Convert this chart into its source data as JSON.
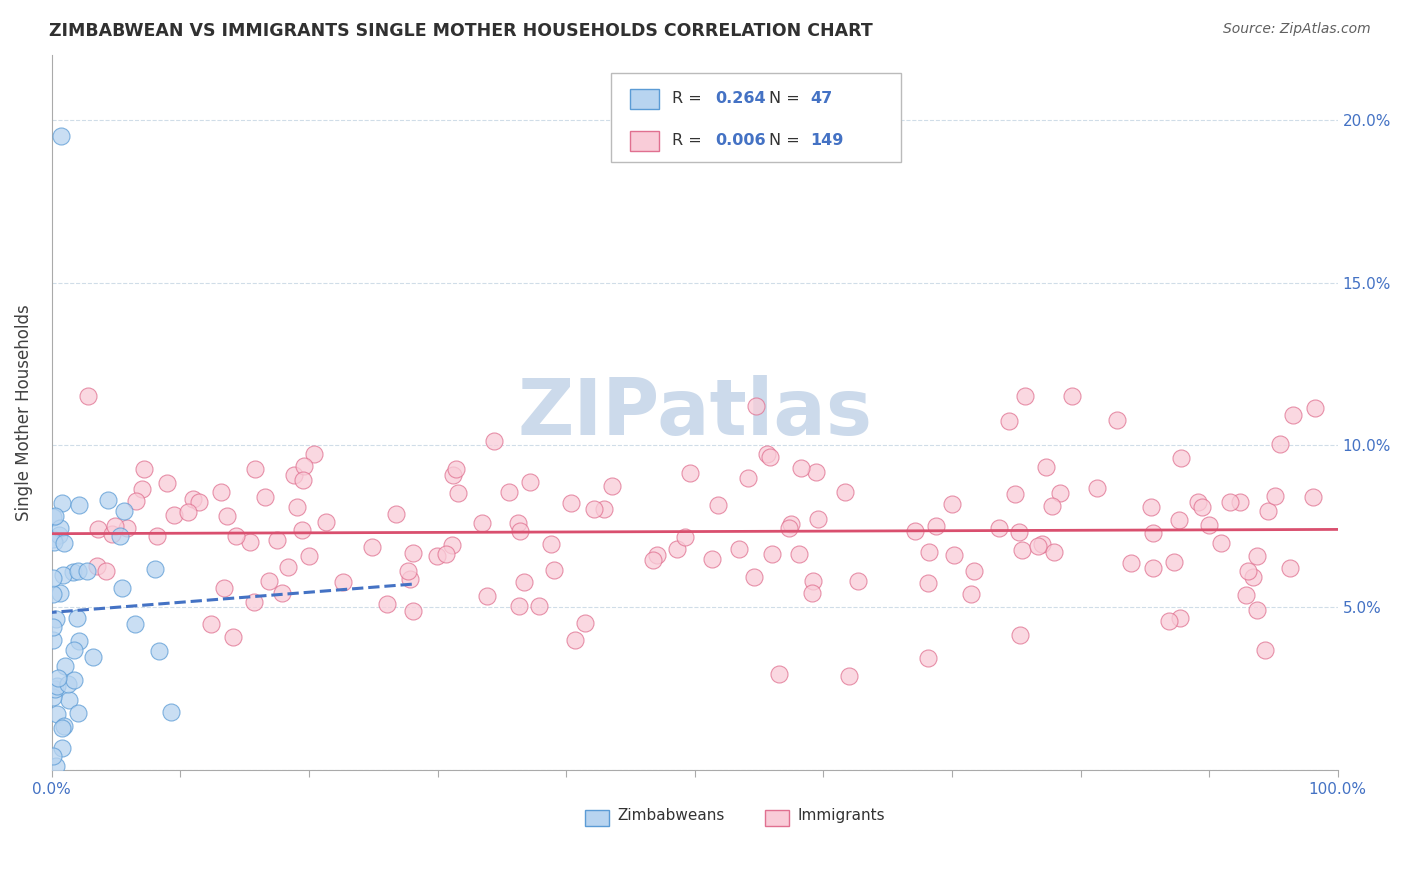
{
  "title": "ZIMBABWEAN VS IMMIGRANTS SINGLE MOTHER HOUSEHOLDS CORRELATION CHART",
  "source": "Source: ZipAtlas.com",
  "ylabel": "Single Mother Households",
  "xlim": [
    0,
    1.0
  ],
  "ylim": [
    0,
    0.22
  ],
  "yticks": [
    0.0,
    0.05,
    0.1,
    0.15,
    0.2
  ],
  "ytick_labels_right": [
    "",
    "5.0%",
    "10.0%",
    "15.0%",
    "20.0%"
  ],
  "xtick_labels": [
    "0.0%",
    "",
    "",
    "",
    "",
    "",
    "",
    "",
    "",
    "",
    "100.0%"
  ],
  "R_zimbabwean": 0.264,
  "N_zimbabwean": 47,
  "R_immigrant": 0.006,
  "N_immigrant": 149,
  "blue_color": "#5b9bd5",
  "pink_line_color": "#d94f6e",
  "blue_line_color": "#4472c4",
  "blue_scatter_fill": "#b8d4f0",
  "blue_scatter_edge": "#5b9bd5",
  "pink_scatter_fill": "#f9ccd8",
  "pink_scatter_edge": "#e07090",
  "watermark_text": "ZIPatlas",
  "watermark_color": "#ccdaeb",
  "background_color": "#ffffff",
  "grid_color": "#d0dde8",
  "title_color": "#303030",
  "source_color": "#606060",
  "tick_color": "#4472c4",
  "legend_label_1": "Zimbabweans",
  "legend_label_2": "Immigrants"
}
